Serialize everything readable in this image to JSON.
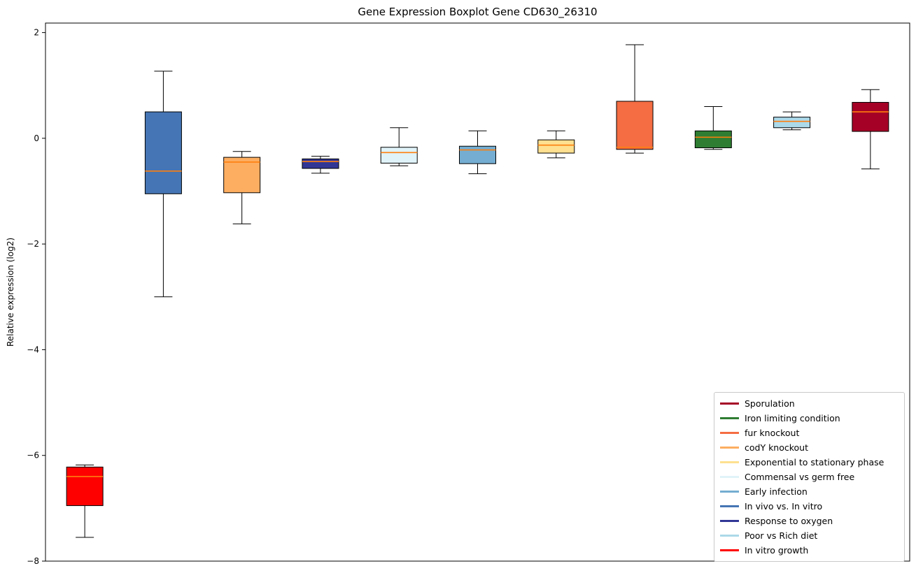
{
  "chart_data": {
    "type": "boxplot",
    "title": "Gene Expression Boxplot Gene CD630_26310",
    "ylabel": "Relative expression (log2)",
    "ylim": [
      -8.0,
      2.18
    ],
    "grid": false,
    "legend_position": "lower right",
    "median_color": "#FF7F0E",
    "yticks": [
      {
        "label": "2",
        "value": 2
      },
      {
        "label": "0",
        "value": 0
      },
      {
        "label": "−2",
        "value": -2
      },
      {
        "label": "−4",
        "value": -4
      },
      {
        "label": "−6",
        "value": -6
      },
      {
        "label": "−8",
        "value": -8
      }
    ],
    "boxes": [
      {
        "name": "In vitro growth",
        "color": "#FF0000",
        "whisker_low": -7.55,
        "q1": -6.95,
        "median": -6.4,
        "q3": -6.22,
        "whisker_high": -6.18
      },
      {
        "name": "In vivo vs. In vitro",
        "color": "#4575B4",
        "whisker_low": -3.0,
        "q1": -1.05,
        "median": -0.62,
        "q3": 0.5,
        "whisker_high": 1.27
      },
      {
        "name": "codY knockout",
        "color": "#FDAE61",
        "whisker_low": -1.62,
        "q1": -1.03,
        "median": -0.45,
        "q3": -0.36,
        "whisker_high": -0.25
      },
      {
        "name": "Response to oxygen",
        "color": "#313695",
        "whisker_low": -0.66,
        "q1": -0.57,
        "median": -0.44,
        "q3": -0.39,
        "whisker_high": -0.34
      },
      {
        "name": "Commensal vs germ free",
        "color": "#E0F3F8",
        "whisker_low": -0.52,
        "q1": -0.47,
        "median": -0.27,
        "q3": -0.17,
        "whisker_high": 0.2
      },
      {
        "name": "Early infection",
        "color": "#74ADD1",
        "whisker_low": -0.67,
        "q1": -0.48,
        "median": -0.22,
        "q3": -0.15,
        "whisker_high": 0.14
      },
      {
        "name": "Exponential to stationary phase",
        "color": "#FEE090",
        "whisker_low": -0.37,
        "q1": -0.28,
        "median": -0.13,
        "q3": -0.03,
        "whisker_high": 0.14
      },
      {
        "name": "fur knockout",
        "color": "#F46D43",
        "whisker_low": -0.28,
        "q1": -0.21,
        "median": -0.17,
        "q3": 0.7,
        "whisker_high": 1.77
      },
      {
        "name": "Iron limiting condition",
        "color": "#2E7D32",
        "whisker_low": -0.21,
        "q1": -0.18,
        "median": 0.02,
        "q3": 0.14,
        "whisker_high": 0.6
      },
      {
        "name": "Poor vs Rich diet",
        "color": "#ABD9E9",
        "whisker_low": 0.16,
        "q1": 0.2,
        "median": 0.32,
        "q3": 0.4,
        "whisker_high": 0.5
      },
      {
        "name": "Sporulation",
        "color": "#A50026",
        "whisker_low": -0.58,
        "q1": 0.13,
        "median": 0.5,
        "q3": 0.68,
        "whisker_high": 0.92
      }
    ],
    "legend": [
      {
        "label": "Sporulation",
        "color": "#A50026"
      },
      {
        "label": "Iron limiting condition",
        "color": "#2E7D32"
      },
      {
        "label": "fur knockout",
        "color": "#F46D43"
      },
      {
        "label": "codY knockout",
        "color": "#FDAE61"
      },
      {
        "label": "Exponential to stationary phase",
        "color": "#FEE090"
      },
      {
        "label": "Commensal vs germ free",
        "color": "#E0F3F8"
      },
      {
        "label": "Early infection",
        "color": "#74ADD1"
      },
      {
        "label": "In vivo vs. In vitro",
        "color": "#4575B4"
      },
      {
        "label": "Response to oxygen",
        "color": "#313695"
      },
      {
        "label": "Poor vs Rich diet",
        "color": "#ABD9E9"
      },
      {
        "label": "In vitro growth",
        "color": "#FF0000"
      }
    ]
  }
}
